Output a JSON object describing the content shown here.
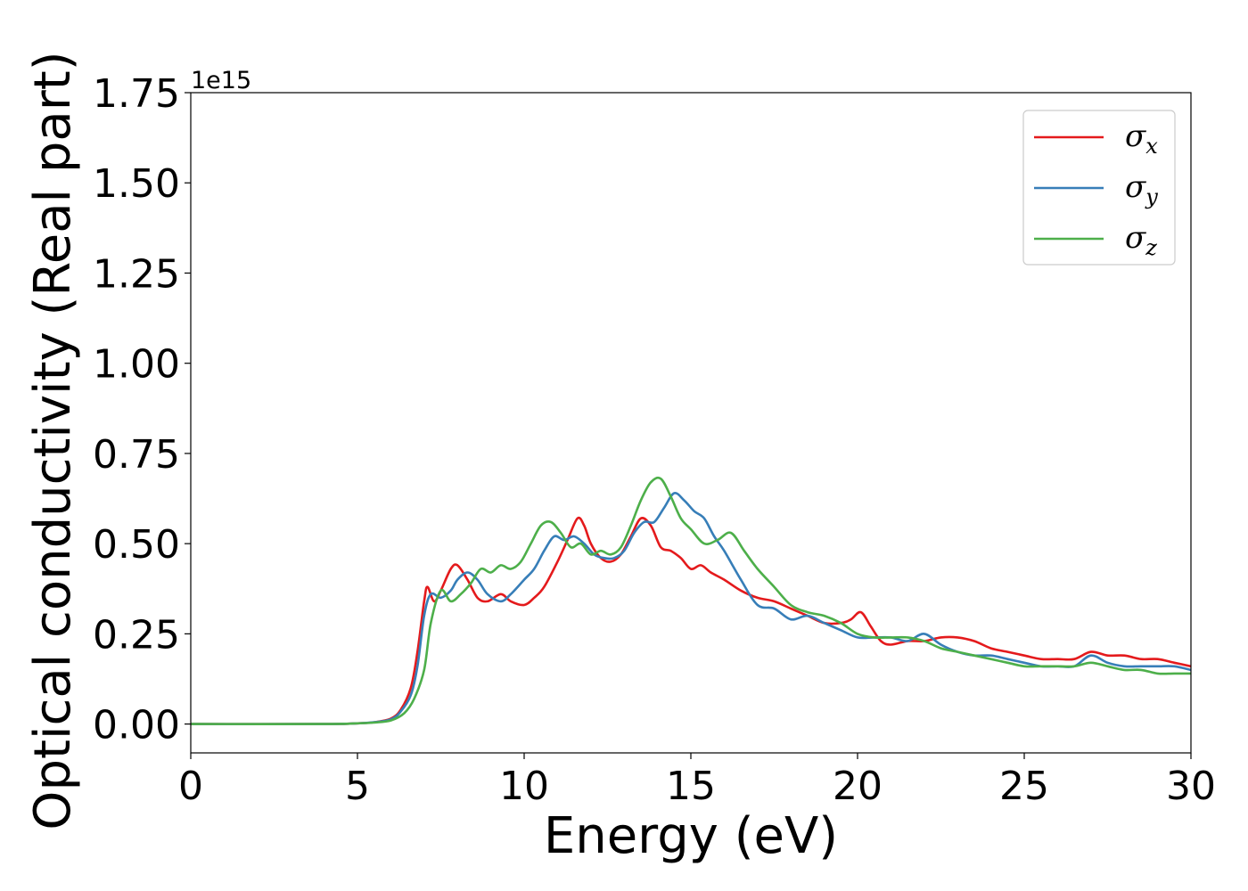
{
  "chart_data": {
    "type": "line",
    "xlabel": "Energy (eV)",
    "ylabel": "Optical conductivity (Real part)",
    "y_offset_label": "1e15",
    "xlim": [
      0,
      30
    ],
    "ylim": [
      -0.08,
      1.75
    ],
    "x_ticks": [
      0,
      5,
      10,
      15,
      20,
      25,
      30
    ],
    "x_tick_labels": [
      "0",
      "5",
      "10",
      "15",
      "20",
      "25",
      "30"
    ],
    "y_ticks": [
      0,
      0.25,
      0.5,
      0.75,
      1.0,
      1.25,
      1.5,
      1.75
    ],
    "y_tick_labels": [
      "0.00",
      "0.25",
      "0.50",
      "0.75",
      "1.00",
      "1.25",
      "1.50",
      "1.75"
    ],
    "grid": false,
    "legend_position": "top-right",
    "series": [
      {
        "name": "σx",
        "legend_symbol": "σ",
        "legend_sub": "x",
        "color": "#e41a1c",
        "x": [
          0,
          4,
          5,
          5.5,
          6,
          6.3,
          6.6,
          6.8,
          7.0,
          7.1,
          7.3,
          7.5,
          7.8,
          8.0,
          8.3,
          8.6,
          8.9,
          9.3,
          9.6,
          10.0,
          10.3,
          10.6,
          11.0,
          11.3,
          11.6,
          11.8,
          12.0,
          12.3,
          12.6,
          12.9,
          13.2,
          13.5,
          13.8,
          14.1,
          14.4,
          14.7,
          15.0,
          15.3,
          15.6,
          16.0,
          16.5,
          17.0,
          17.5,
          18.0,
          18.5,
          19.0,
          19.5,
          19.8,
          20.1,
          20.4,
          20.7,
          21.0,
          21.5,
          22.0,
          22.5,
          23.0,
          23.5,
          24.0,
          24.5,
          25.0,
          25.5,
          26.0,
          26.5,
          27.0,
          27.5,
          28.0,
          28.5,
          29.0,
          29.5,
          30.0
        ],
        "values": [
          0,
          0,
          0.002,
          0.005,
          0.015,
          0.04,
          0.1,
          0.2,
          0.34,
          0.38,
          0.34,
          0.37,
          0.43,
          0.44,
          0.4,
          0.35,
          0.34,
          0.36,
          0.34,
          0.33,
          0.35,
          0.38,
          0.45,
          0.51,
          0.57,
          0.55,
          0.5,
          0.46,
          0.45,
          0.47,
          0.52,
          0.57,
          0.55,
          0.49,
          0.48,
          0.46,
          0.43,
          0.44,
          0.42,
          0.4,
          0.37,
          0.35,
          0.34,
          0.32,
          0.3,
          0.28,
          0.28,
          0.29,
          0.31,
          0.27,
          0.23,
          0.22,
          0.23,
          0.23,
          0.24,
          0.24,
          0.23,
          0.21,
          0.2,
          0.19,
          0.18,
          0.18,
          0.18,
          0.2,
          0.19,
          0.19,
          0.18,
          0.18,
          0.17,
          0.16
        ]
      },
      {
        "name": "σy",
        "legend_symbol": "σ",
        "legend_sub": "y",
        "color": "#377eb8",
        "x": [
          0,
          4,
          5,
          5.5,
          6,
          6.3,
          6.6,
          6.8,
          7.0,
          7.2,
          7.5,
          7.8,
          8.0,
          8.3,
          8.6,
          8.9,
          9.3,
          9.6,
          10.0,
          10.3,
          10.6,
          10.9,
          11.2,
          11.5,
          11.8,
          12.1,
          12.4,
          12.7,
          13.0,
          13.3,
          13.6,
          13.9,
          14.2,
          14.5,
          14.8,
          15.1,
          15.4,
          15.7,
          16.0,
          16.5,
          17.0,
          17.5,
          18.0,
          18.5,
          19.0,
          19.5,
          20.0,
          20.5,
          21.0,
          21.5,
          22.0,
          22.5,
          23.0,
          23.5,
          24.0,
          24.5,
          25.0,
          25.5,
          26.0,
          26.5,
          27.0,
          27.5,
          28.0,
          28.5,
          29.0,
          29.5,
          30.0
        ],
        "values": [
          0,
          0,
          0.002,
          0.005,
          0.013,
          0.035,
          0.08,
          0.16,
          0.3,
          0.36,
          0.35,
          0.37,
          0.4,
          0.42,
          0.4,
          0.36,
          0.34,
          0.36,
          0.4,
          0.43,
          0.48,
          0.52,
          0.51,
          0.52,
          0.5,
          0.47,
          0.46,
          0.46,
          0.48,
          0.53,
          0.56,
          0.56,
          0.6,
          0.64,
          0.62,
          0.59,
          0.57,
          0.52,
          0.48,
          0.4,
          0.33,
          0.32,
          0.29,
          0.3,
          0.28,
          0.26,
          0.24,
          0.24,
          0.24,
          0.23,
          0.25,
          0.22,
          0.2,
          0.19,
          0.19,
          0.18,
          0.17,
          0.16,
          0.16,
          0.16,
          0.19,
          0.17,
          0.16,
          0.16,
          0.16,
          0.16,
          0.15
        ]
      },
      {
        "name": "σz",
        "legend_symbol": "σ",
        "legend_sub": "z",
        "color": "#4daf4a",
        "x": [
          0,
          4,
          5,
          5.5,
          6,
          6.4,
          6.7,
          7.0,
          7.2,
          7.5,
          7.8,
          8.1,
          8.4,
          8.7,
          9.0,
          9.3,
          9.6,
          9.9,
          10.2,
          10.5,
          10.8,
          11.1,
          11.4,
          11.7,
          12.0,
          12.3,
          12.6,
          12.9,
          13.2,
          13.5,
          13.8,
          14.1,
          14.4,
          14.7,
          15.0,
          15.4,
          15.8,
          16.2,
          16.6,
          17.0,
          17.5,
          18.0,
          18.5,
          19.0,
          19.5,
          20.0,
          20.5,
          21.0,
          21.5,
          22.0,
          22.5,
          23.0,
          23.5,
          24.0,
          24.5,
          25.0,
          25.5,
          26.0,
          26.5,
          27.0,
          27.5,
          28.0,
          28.5,
          29.0,
          29.5,
          30.0
        ],
        "values": [
          0,
          0,
          0.002,
          0.004,
          0.01,
          0.03,
          0.07,
          0.15,
          0.28,
          0.37,
          0.34,
          0.36,
          0.39,
          0.43,
          0.42,
          0.44,
          0.43,
          0.45,
          0.5,
          0.55,
          0.56,
          0.53,
          0.49,
          0.5,
          0.47,
          0.48,
          0.47,
          0.49,
          0.55,
          0.62,
          0.67,
          0.68,
          0.63,
          0.57,
          0.54,
          0.5,
          0.51,
          0.53,
          0.48,
          0.43,
          0.38,
          0.33,
          0.31,
          0.3,
          0.28,
          0.25,
          0.24,
          0.24,
          0.24,
          0.23,
          0.21,
          0.2,
          0.19,
          0.18,
          0.17,
          0.16,
          0.16,
          0.16,
          0.16,
          0.17,
          0.16,
          0.15,
          0.15,
          0.14,
          0.14,
          0.14
        ]
      }
    ]
  }
}
